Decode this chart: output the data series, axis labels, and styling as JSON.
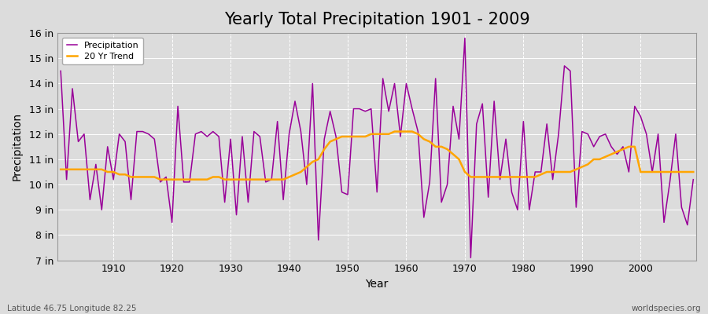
{
  "title": "Yearly Total Precipitation 1901 - 2009",
  "xlabel": "Year",
  "ylabel": "Precipitation",
  "subtitle_left": "Latitude 46.75 Longitude 82.25",
  "subtitle_right": "worldspecies.org",
  "years": [
    1901,
    1902,
    1903,
    1904,
    1905,
    1906,
    1907,
    1908,
    1909,
    1910,
    1911,
    1912,
    1913,
    1914,
    1915,
    1916,
    1917,
    1918,
    1919,
    1920,
    1921,
    1922,
    1923,
    1924,
    1925,
    1926,
    1927,
    1928,
    1929,
    1930,
    1931,
    1932,
    1933,
    1934,
    1935,
    1936,
    1937,
    1938,
    1939,
    1940,
    1941,
    1942,
    1943,
    1944,
    1945,
    1946,
    1947,
    1948,
    1949,
    1950,
    1951,
    1952,
    1953,
    1954,
    1955,
    1956,
    1957,
    1958,
    1959,
    1960,
    1961,
    1962,
    1963,
    1964,
    1965,
    1966,
    1967,
    1968,
    1969,
    1970,
    1971,
    1972,
    1973,
    1974,
    1975,
    1976,
    1977,
    1978,
    1979,
    1980,
    1981,
    1982,
    1983,
    1984,
    1985,
    1986,
    1987,
    1988,
    1989,
    1990,
    1991,
    1992,
    1993,
    1994,
    1995,
    1996,
    1997,
    1998,
    1999,
    2000,
    2001,
    2002,
    2003,
    2004,
    2005,
    2006,
    2007,
    2008,
    2009
  ],
  "precip": [
    14.5,
    10.2,
    13.8,
    11.7,
    12.0,
    9.4,
    10.8,
    9.0,
    11.5,
    10.2,
    12.0,
    11.7,
    9.4,
    12.1,
    12.1,
    12.0,
    11.8,
    10.1,
    10.3,
    8.5,
    13.1,
    10.1,
    10.1,
    12.0,
    12.1,
    11.9,
    12.1,
    11.9,
    9.3,
    11.8,
    8.8,
    11.9,
    9.3,
    12.1,
    11.9,
    10.1,
    10.2,
    12.5,
    9.4,
    12.0,
    13.3,
    12.1,
    10.0,
    14.0,
    7.8,
    11.8,
    12.9,
    11.9,
    9.7,
    9.6,
    13.0,
    13.0,
    12.9,
    13.0,
    9.7,
    14.2,
    12.9,
    14.0,
    11.9,
    14.0,
    13.0,
    12.1,
    8.7,
    10.1,
    14.2,
    9.3,
    10.0,
    13.1,
    11.8,
    15.8,
    7.1,
    12.4,
    13.2,
    9.5,
    13.3,
    10.2,
    11.8,
    9.7,
    9.0,
    12.5,
    9.0,
    10.5,
    10.5,
    12.4,
    10.2,
    12.0,
    14.7,
    14.5,
    9.1,
    12.1,
    12.0,
    11.5,
    11.9,
    12.0,
    11.5,
    11.2,
    11.5,
    10.5,
    13.1,
    12.7,
    12.0,
    10.5,
    12.0,
    8.5,
    10.1,
    12.0,
    9.1,
    8.4,
    10.2
  ],
  "trend": [
    10.6,
    10.6,
    10.6,
    10.6,
    10.6,
    10.6,
    10.6,
    10.6,
    10.5,
    10.5,
    10.4,
    10.4,
    10.3,
    10.3,
    10.3,
    10.3,
    10.3,
    10.2,
    10.2,
    10.2,
    10.2,
    10.2,
    10.2,
    10.2,
    10.2,
    10.2,
    10.3,
    10.3,
    10.2,
    10.2,
    10.2,
    10.2,
    10.2,
    10.2,
    10.2,
    10.2,
    10.2,
    10.2,
    10.2,
    10.3,
    10.4,
    10.5,
    10.7,
    10.9,
    11.0,
    11.4,
    11.7,
    11.8,
    11.9,
    11.9,
    11.9,
    11.9,
    11.9,
    12.0,
    12.0,
    12.0,
    12.0,
    12.1,
    12.1,
    12.1,
    12.1,
    12.0,
    11.8,
    11.7,
    11.5,
    11.5,
    11.4,
    11.2,
    11.0,
    10.5,
    10.3,
    10.3,
    10.3,
    10.3,
    10.3,
    10.3,
    10.3,
    10.3,
    10.3,
    10.3,
    10.3,
    10.3,
    10.4,
    10.5,
    10.5,
    10.5,
    10.5,
    10.5,
    10.6,
    10.7,
    10.8,
    11.0,
    11.0,
    11.1,
    11.2,
    11.3,
    11.4,
    11.5,
    11.5,
    10.5,
    10.5,
    10.5,
    10.5,
    10.5,
    10.5,
    10.5,
    10.5,
    10.5,
    10.5
  ],
  "ylim": [
    7,
    16
  ],
  "yticks": [
    7,
    8,
    9,
    10,
    11,
    12,
    13,
    14,
    15,
    16
  ],
  "ytick_labels": [
    "7 in",
    "8 in",
    "9 in",
    "10 in",
    "11 in",
    "12 in",
    "13 in",
    "14 in",
    "15 in",
    "16 in"
  ],
  "xticks": [
    1910,
    1920,
    1930,
    1940,
    1950,
    1960,
    1970,
    1980,
    1990,
    2000
  ],
  "precip_color": "#990099",
  "trend_color": "#FFA500",
  "bg_color": "#DCDCDC",
  "plot_bg_color": "#DCDCDC",
  "grid_color": "#FFFFFF",
  "title_fontsize": 15,
  "axis_label_fontsize": 10,
  "tick_fontsize": 9
}
